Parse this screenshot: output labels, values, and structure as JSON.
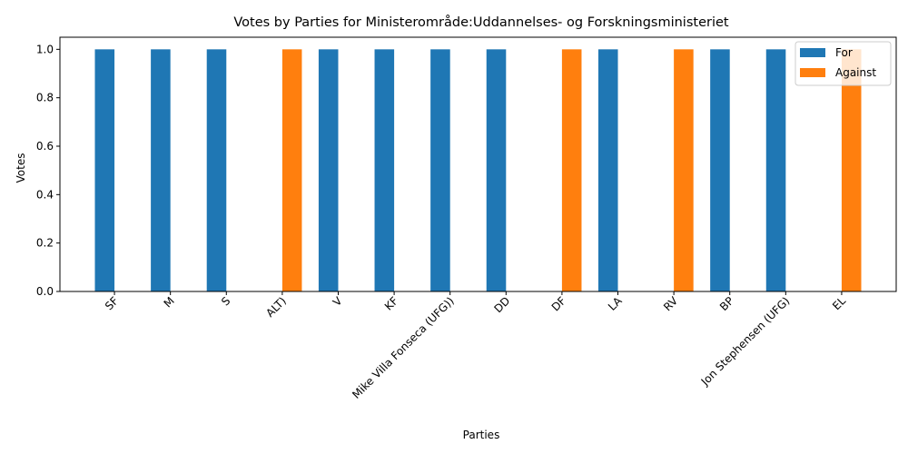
{
  "chart_data": {
    "type": "bar",
    "title": "Votes by Parties for Ministerområde:Uddannelses- og Forskningsministeriet",
    "xlabel": "Parties",
    "ylabel": "Votes",
    "ylim": [
      0,
      1.05
    ],
    "yticks": [
      "0.0",
      "0.2",
      "0.4",
      "0.6",
      "0.8",
      "1.0"
    ],
    "categories": [
      "SF",
      "M",
      "S",
      "ALT)",
      "V",
      "KF",
      "Mike Villa Fonseca (UFG))",
      "DD",
      "DF",
      "LA",
      "RV",
      "BP",
      "Jon Stephensen (UFG)",
      "EL"
    ],
    "series": [
      {
        "name": "For",
        "color": "#1f77b4",
        "values": [
          1,
          1,
          1,
          0,
          1,
          1,
          1,
          1,
          0,
          1,
          0,
          1,
          1,
          0
        ]
      },
      {
        "name": "Against",
        "color": "#ff7f0e",
        "values": [
          0,
          0,
          0,
          1,
          0,
          0,
          0,
          0,
          1,
          0,
          1,
          0,
          0,
          1
        ]
      }
    ],
    "legend_position": "top-right",
    "grid": false
  }
}
